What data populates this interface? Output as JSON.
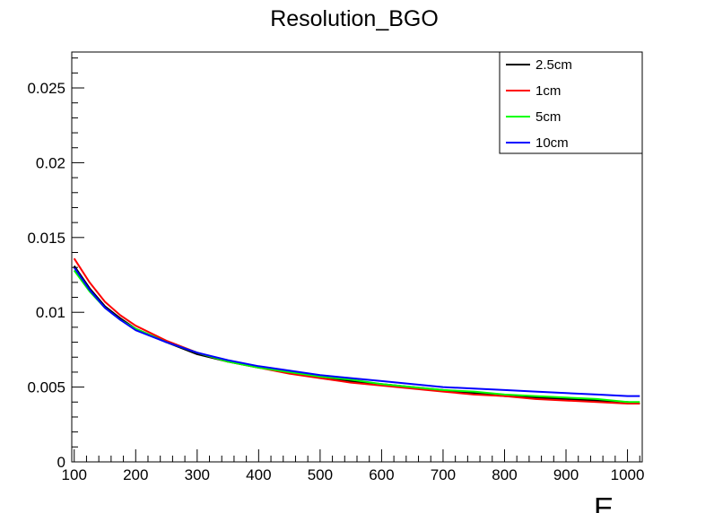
{
  "chart_data": {
    "type": "line",
    "title": "Resolution_BGO",
    "xlabel": "E",
    "ylabel": "",
    "xlim": [
      96,
      1024
    ],
    "ylim": [
      0,
      0.0274
    ],
    "x_ticks": [
      100,
      200,
      300,
      400,
      500,
      600,
      700,
      800,
      900,
      1000
    ],
    "y_ticks": [
      0,
      0.005,
      0.01,
      0.015,
      0.02,
      0.025
    ],
    "x_tick_labels": [
      "100",
      "200",
      "300",
      "400",
      "500",
      "600",
      "700",
      "800",
      "900",
      "1000"
    ],
    "y_tick_labels": [
      "0",
      "0.005",
      "0.01",
      "0.015",
      "0.02",
      "0.025"
    ],
    "grid": false,
    "legend_position": "top-right",
    "x": [
      100,
      125,
      150,
      175,
      200,
      250,
      300,
      350,
      400,
      450,
      500,
      550,
      600,
      650,
      700,
      750,
      800,
      850,
      900,
      950,
      1000,
      1020
    ],
    "series": [
      {
        "name": "2.5cm",
        "color": "#000000",
        "values": [
          0.0131,
          0.0116,
          0.0104,
          0.0096,
          0.0089,
          0.008,
          0.0072,
          0.0067,
          0.0063,
          0.006,
          0.0057,
          0.0054,
          0.0052,
          0.005,
          0.0048,
          0.0046,
          0.0044,
          0.0043,
          0.0042,
          0.0041,
          0.004,
          0.0039
        ]
      },
      {
        "name": "1cm",
        "color": "#ff0000",
        "values": [
          0.0136,
          0.012,
          0.0107,
          0.0098,
          0.0091,
          0.0081,
          0.0073,
          0.0067,
          0.0063,
          0.0059,
          0.0056,
          0.0053,
          0.0051,
          0.0049,
          0.0047,
          0.0045,
          0.0044,
          0.0042,
          0.0041,
          0.004,
          0.0039,
          0.0039
        ]
      },
      {
        "name": "5cm",
        "color": "#00ff00",
        "values": [
          0.0128,
          0.0114,
          0.0103,
          0.0095,
          0.0089,
          0.008,
          0.0073,
          0.0067,
          0.0063,
          0.006,
          0.0057,
          0.0055,
          0.0052,
          0.005,
          0.0048,
          0.0047,
          0.0045,
          0.0044,
          0.0043,
          0.0042,
          0.004,
          0.004
        ]
      },
      {
        "name": "10cm",
        "color": "#0000ff",
        "values": [
          0.013,
          0.0115,
          0.0103,
          0.0095,
          0.0088,
          0.008,
          0.0073,
          0.0068,
          0.0064,
          0.0061,
          0.0058,
          0.0056,
          0.0054,
          0.0052,
          0.005,
          0.0049,
          0.0048,
          0.0047,
          0.0046,
          0.0045,
          0.0044,
          0.0044
        ]
      }
    ]
  }
}
